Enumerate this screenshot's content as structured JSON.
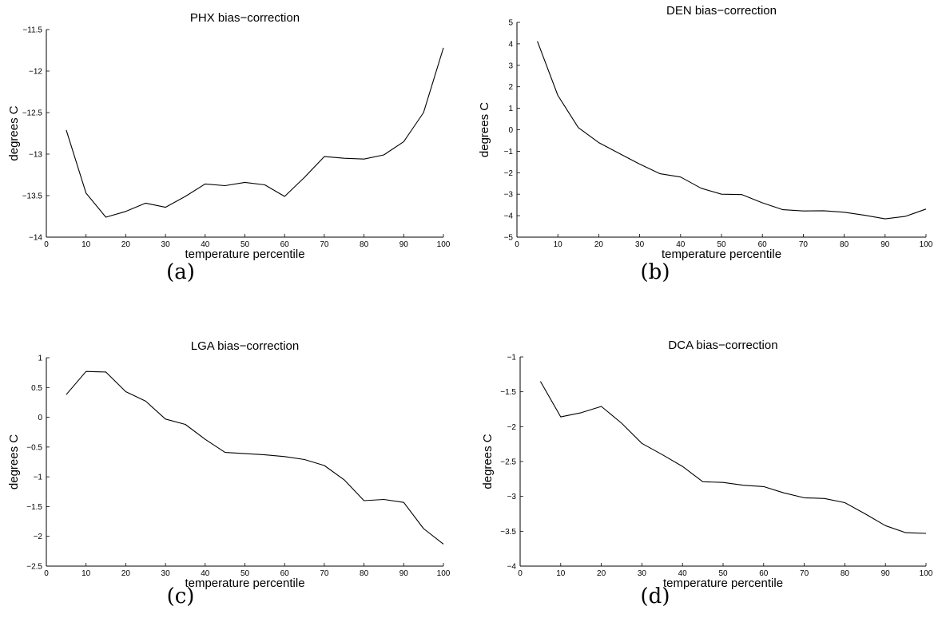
{
  "chart_data": [
    {
      "type": "line",
      "panel": "a",
      "caption": "(a)",
      "title": "PHX bias−correction",
      "xlabel": "temperature percentile",
      "ylabel": "degrees C",
      "xlim": [
        0,
        100
      ],
      "ylim": [
        -14,
        -11.5
      ],
      "xticks": [
        0,
        10,
        20,
        30,
        40,
        50,
        60,
        70,
        80,
        90,
        100
      ],
      "yticks": [
        -14,
        -13.5,
        -13,
        -12.5,
        -12,
        -11.5
      ],
      "ytick_labels": [
        "−14",
        "−13.5",
        "−13",
        "−12.5",
        "−12",
        "−11.5"
      ],
      "grid": false,
      "x": [
        5,
        10,
        15,
        20,
        25,
        30,
        35,
        40,
        45,
        50,
        55,
        60,
        65,
        70,
        75,
        80,
        85,
        90,
        95,
        100
      ],
      "y": [
        -12.71,
        -13.47,
        -13.76,
        -13.69,
        -13.59,
        -13.64,
        -13.51,
        -13.36,
        -13.38,
        -13.34,
        -13.37,
        -13.51,
        -13.28,
        -13.03,
        -13.05,
        -13.06,
        -13.01,
        -12.85,
        -12.5,
        -11.72
      ]
    },
    {
      "type": "line",
      "panel": "b",
      "caption": "(b)",
      "title": "DEN bias−correction",
      "xlabel": "temperature percentile",
      "ylabel": "degrees C",
      "xlim": [
        0,
        100
      ],
      "ylim": [
        -5,
        5
      ],
      "xticks": [
        0,
        10,
        20,
        30,
        40,
        50,
        60,
        70,
        80,
        90,
        100
      ],
      "yticks": [
        -5,
        -4,
        -3,
        -2,
        -1,
        0,
        1,
        2,
        3,
        4,
        5
      ],
      "ytick_labels": [
        "−5",
        "−4",
        "−3",
        "−2",
        "−1",
        "0",
        "1",
        "2",
        "3",
        "4",
        "5"
      ],
      "grid": false,
      "x": [
        5,
        10,
        15,
        20,
        25,
        30,
        35,
        40,
        45,
        50,
        55,
        60,
        65,
        70,
        75,
        80,
        85,
        90,
        95,
        100
      ],
      "y": [
        4.12,
        1.6,
        0.1,
        -0.6,
        -1.1,
        -1.6,
        -2.05,
        -2.2,
        -2.72,
        -3.0,
        -3.02,
        -3.4,
        -3.72,
        -3.78,
        -3.77,
        -3.84,
        -3.98,
        -4.15,
        -4.03,
        -3.69
      ]
    },
    {
      "type": "line",
      "panel": "c",
      "caption": "(c)",
      "title": "LGA bias−correction",
      "xlabel": "temperature percentile",
      "ylabel": "degrees C",
      "xlim": [
        0,
        100
      ],
      "ylim": [
        -2.5,
        1
      ],
      "xticks": [
        0,
        10,
        20,
        30,
        40,
        50,
        60,
        70,
        80,
        90,
        100
      ],
      "yticks": [
        -2.5,
        -2,
        -1.5,
        -1,
        -0.5,
        0,
        0.5,
        1
      ],
      "ytick_labels": [
        "−2.5",
        "−2",
        "−1.5",
        "−1",
        "−0.5",
        "0",
        "0.5",
        "1"
      ],
      "grid": false,
      "x": [
        5,
        10,
        15,
        20,
        25,
        30,
        35,
        40,
        45,
        50,
        55,
        60,
        65,
        70,
        75,
        80,
        85,
        90,
        95,
        100
      ],
      "y": [
        0.38,
        0.77,
        0.76,
        0.43,
        0.27,
        -0.03,
        -0.12,
        -0.37,
        -0.59,
        -0.61,
        -0.63,
        -0.66,
        -0.71,
        -0.81,
        -1.05,
        -1.4,
        -1.38,
        -1.43,
        -1.87,
        -2.13
      ]
    },
    {
      "type": "line",
      "panel": "d",
      "caption": "(d)",
      "title": "DCA bias−correction",
      "xlabel": "temperature percentile",
      "ylabel": "degrees C",
      "xlim": [
        0,
        100
      ],
      "ylim": [
        -4,
        -1
      ],
      "xticks": [
        0,
        10,
        20,
        30,
        40,
        50,
        60,
        70,
        80,
        90,
        100
      ],
      "yticks": [
        -4,
        -3.5,
        -3,
        -2.5,
        -2,
        -1.5,
        -1
      ],
      "ytick_labels": [
        "−4",
        "−3.5",
        "−3",
        "−2.5",
        "−2",
        "−1.5",
        "−1"
      ],
      "grid": false,
      "x": [
        5,
        10,
        15,
        20,
        25,
        30,
        35,
        40,
        45,
        50,
        55,
        60,
        65,
        70,
        75,
        80,
        85,
        90,
        95,
        100
      ],
      "y": [
        -1.35,
        -1.86,
        -1.8,
        -1.71,
        -1.95,
        -2.24,
        -2.4,
        -2.57,
        -2.79,
        -2.8,
        -2.84,
        -2.86,
        -2.95,
        -3.02,
        -3.03,
        -3.09,
        -3.25,
        -3.42,
        -3.52,
        -3.53
      ]
    }
  ]
}
